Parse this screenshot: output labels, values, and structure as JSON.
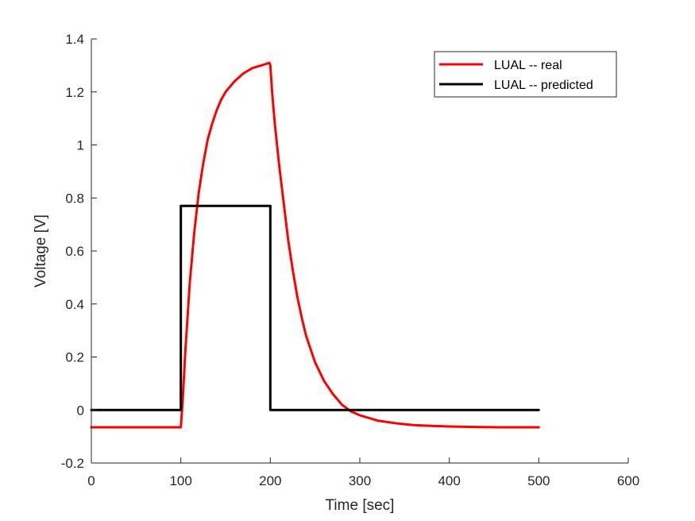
{
  "chart_data": {
    "type": "line",
    "title": "",
    "xlabel": "Time [sec]",
    "ylabel": "Voltage [V]",
    "xlim": [
      0,
      600
    ],
    "ylim": [
      -0.2,
      1.4
    ],
    "xticks": [
      0,
      100,
      200,
      300,
      400,
      500,
      600
    ],
    "xtick_labels": [
      "0",
      "100",
      "200",
      "300",
      "400",
      "500",
      "600"
    ],
    "yticks": [
      -0.2,
      0,
      0.2,
      0.4,
      0.6,
      0.8,
      1,
      1.2,
      1.4
    ],
    "ytick_labels": [
      "-0.2",
      "0",
      "0.2",
      "0.4",
      "0.6",
      "0.8",
      "1",
      "1.2",
      "1.4"
    ],
    "grid": false,
    "legend_position": "top-right",
    "series": [
      {
        "name": "LUAL -- real",
        "color": "#ff0000",
        "x": [
          0,
          100,
          102,
          105,
          110,
          115,
          120,
          125,
          130,
          135,
          140,
          145,
          150,
          160,
          170,
          180,
          190,
          199,
          200,
          202,
          205,
          210,
          215,
          220,
          225,
          230,
          235,
          240,
          250,
          260,
          270,
          280,
          290,
          300,
          320,
          340,
          360,
          380,
          400,
          430,
          460,
          500
        ],
        "y": [
          -0.065,
          -0.065,
          0.03,
          0.22,
          0.48,
          0.67,
          0.82,
          0.93,
          1.02,
          1.08,
          1.13,
          1.17,
          1.2,
          1.24,
          1.27,
          1.29,
          1.3,
          1.31,
          1.3,
          1.2,
          1.08,
          0.92,
          0.78,
          0.64,
          0.53,
          0.43,
          0.35,
          0.28,
          0.18,
          0.11,
          0.06,
          0.02,
          -0.005,
          -0.02,
          -0.04,
          -0.05,
          -0.057,
          -0.06,
          -0.062,
          -0.064,
          -0.065,
          -0.065
        ]
      },
      {
        "name": "LUAL -- predicted",
        "color": "#000000",
        "x": [
          0,
          100,
          100,
          200,
          200,
          500
        ],
        "y": [
          0,
          0,
          0.77,
          0.77,
          0,
          0
        ]
      }
    ]
  }
}
